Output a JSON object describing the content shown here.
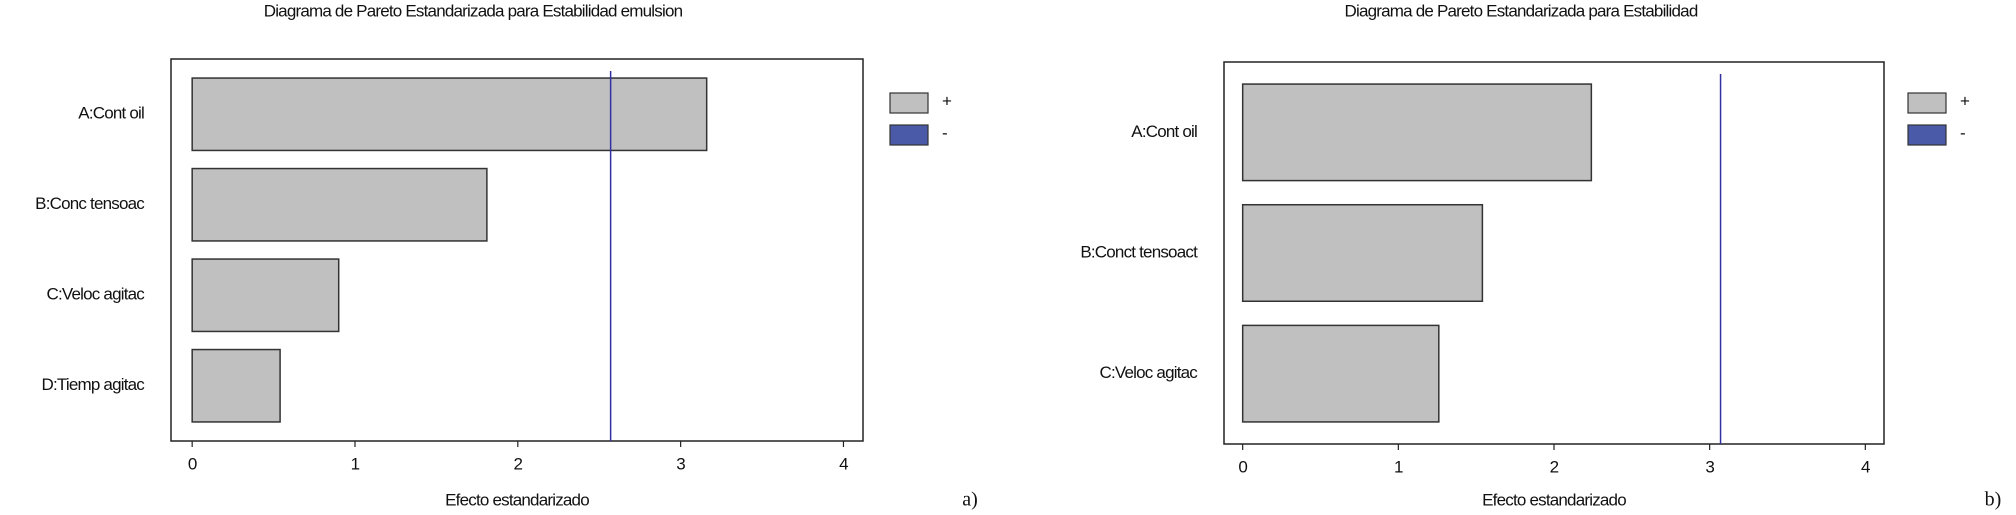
{
  "chart_data": [
    {
      "type": "bar",
      "orientation": "horizontal",
      "title": "Diagrama de Pareto Estandarizada para Estabilidad emulsion",
      "x_label": "Efecto estandarizado",
      "panel_label": "a)",
      "categories": [
        "A:Cont oil",
        "B:Conc tensoac",
        "C:Veloc agitac",
        "D:Tiemp agitac"
      ],
      "series": [
        {
          "name": "+",
          "color": "#c0c0c0",
          "values": [
            3.16,
            1.81,
            0.9,
            0.54
          ]
        },
        {
          "name": "-",
          "color": "#4a5aa8",
          "values": [
            null,
            null,
            null,
            null
          ]
        }
      ],
      "reference_line": 2.57,
      "reference_color": "#3030a0",
      "xlim": [
        -0.13,
        4.12
      ],
      "xticks": [
        0,
        1,
        2,
        3,
        4
      ],
      "legend": "right"
    },
    {
      "type": "bar",
      "orientation": "horizontal",
      "title": "Diagrama de Pareto Estandarizada para Estabilidad",
      "x_label": "Efecto estandarizado",
      "panel_label": "b)",
      "categories": [
        "A:Cont oil",
        "B:Conct tensoact",
        "C:Veloc agitac"
      ],
      "series": [
        {
          "name": "+",
          "color": "#c0c0c0",
          "values": [
            2.24,
            1.54,
            1.26
          ]
        },
        {
          "name": "-",
          "color": "#4a5aa8",
          "values": [
            null,
            null,
            null
          ]
        }
      ],
      "reference_line": 3.07,
      "reference_color": "#3030a0",
      "xlim": [
        -0.12,
        4.12
      ],
      "xticks": [
        0,
        1,
        2,
        3,
        4
      ],
      "legend": "right"
    }
  ]
}
